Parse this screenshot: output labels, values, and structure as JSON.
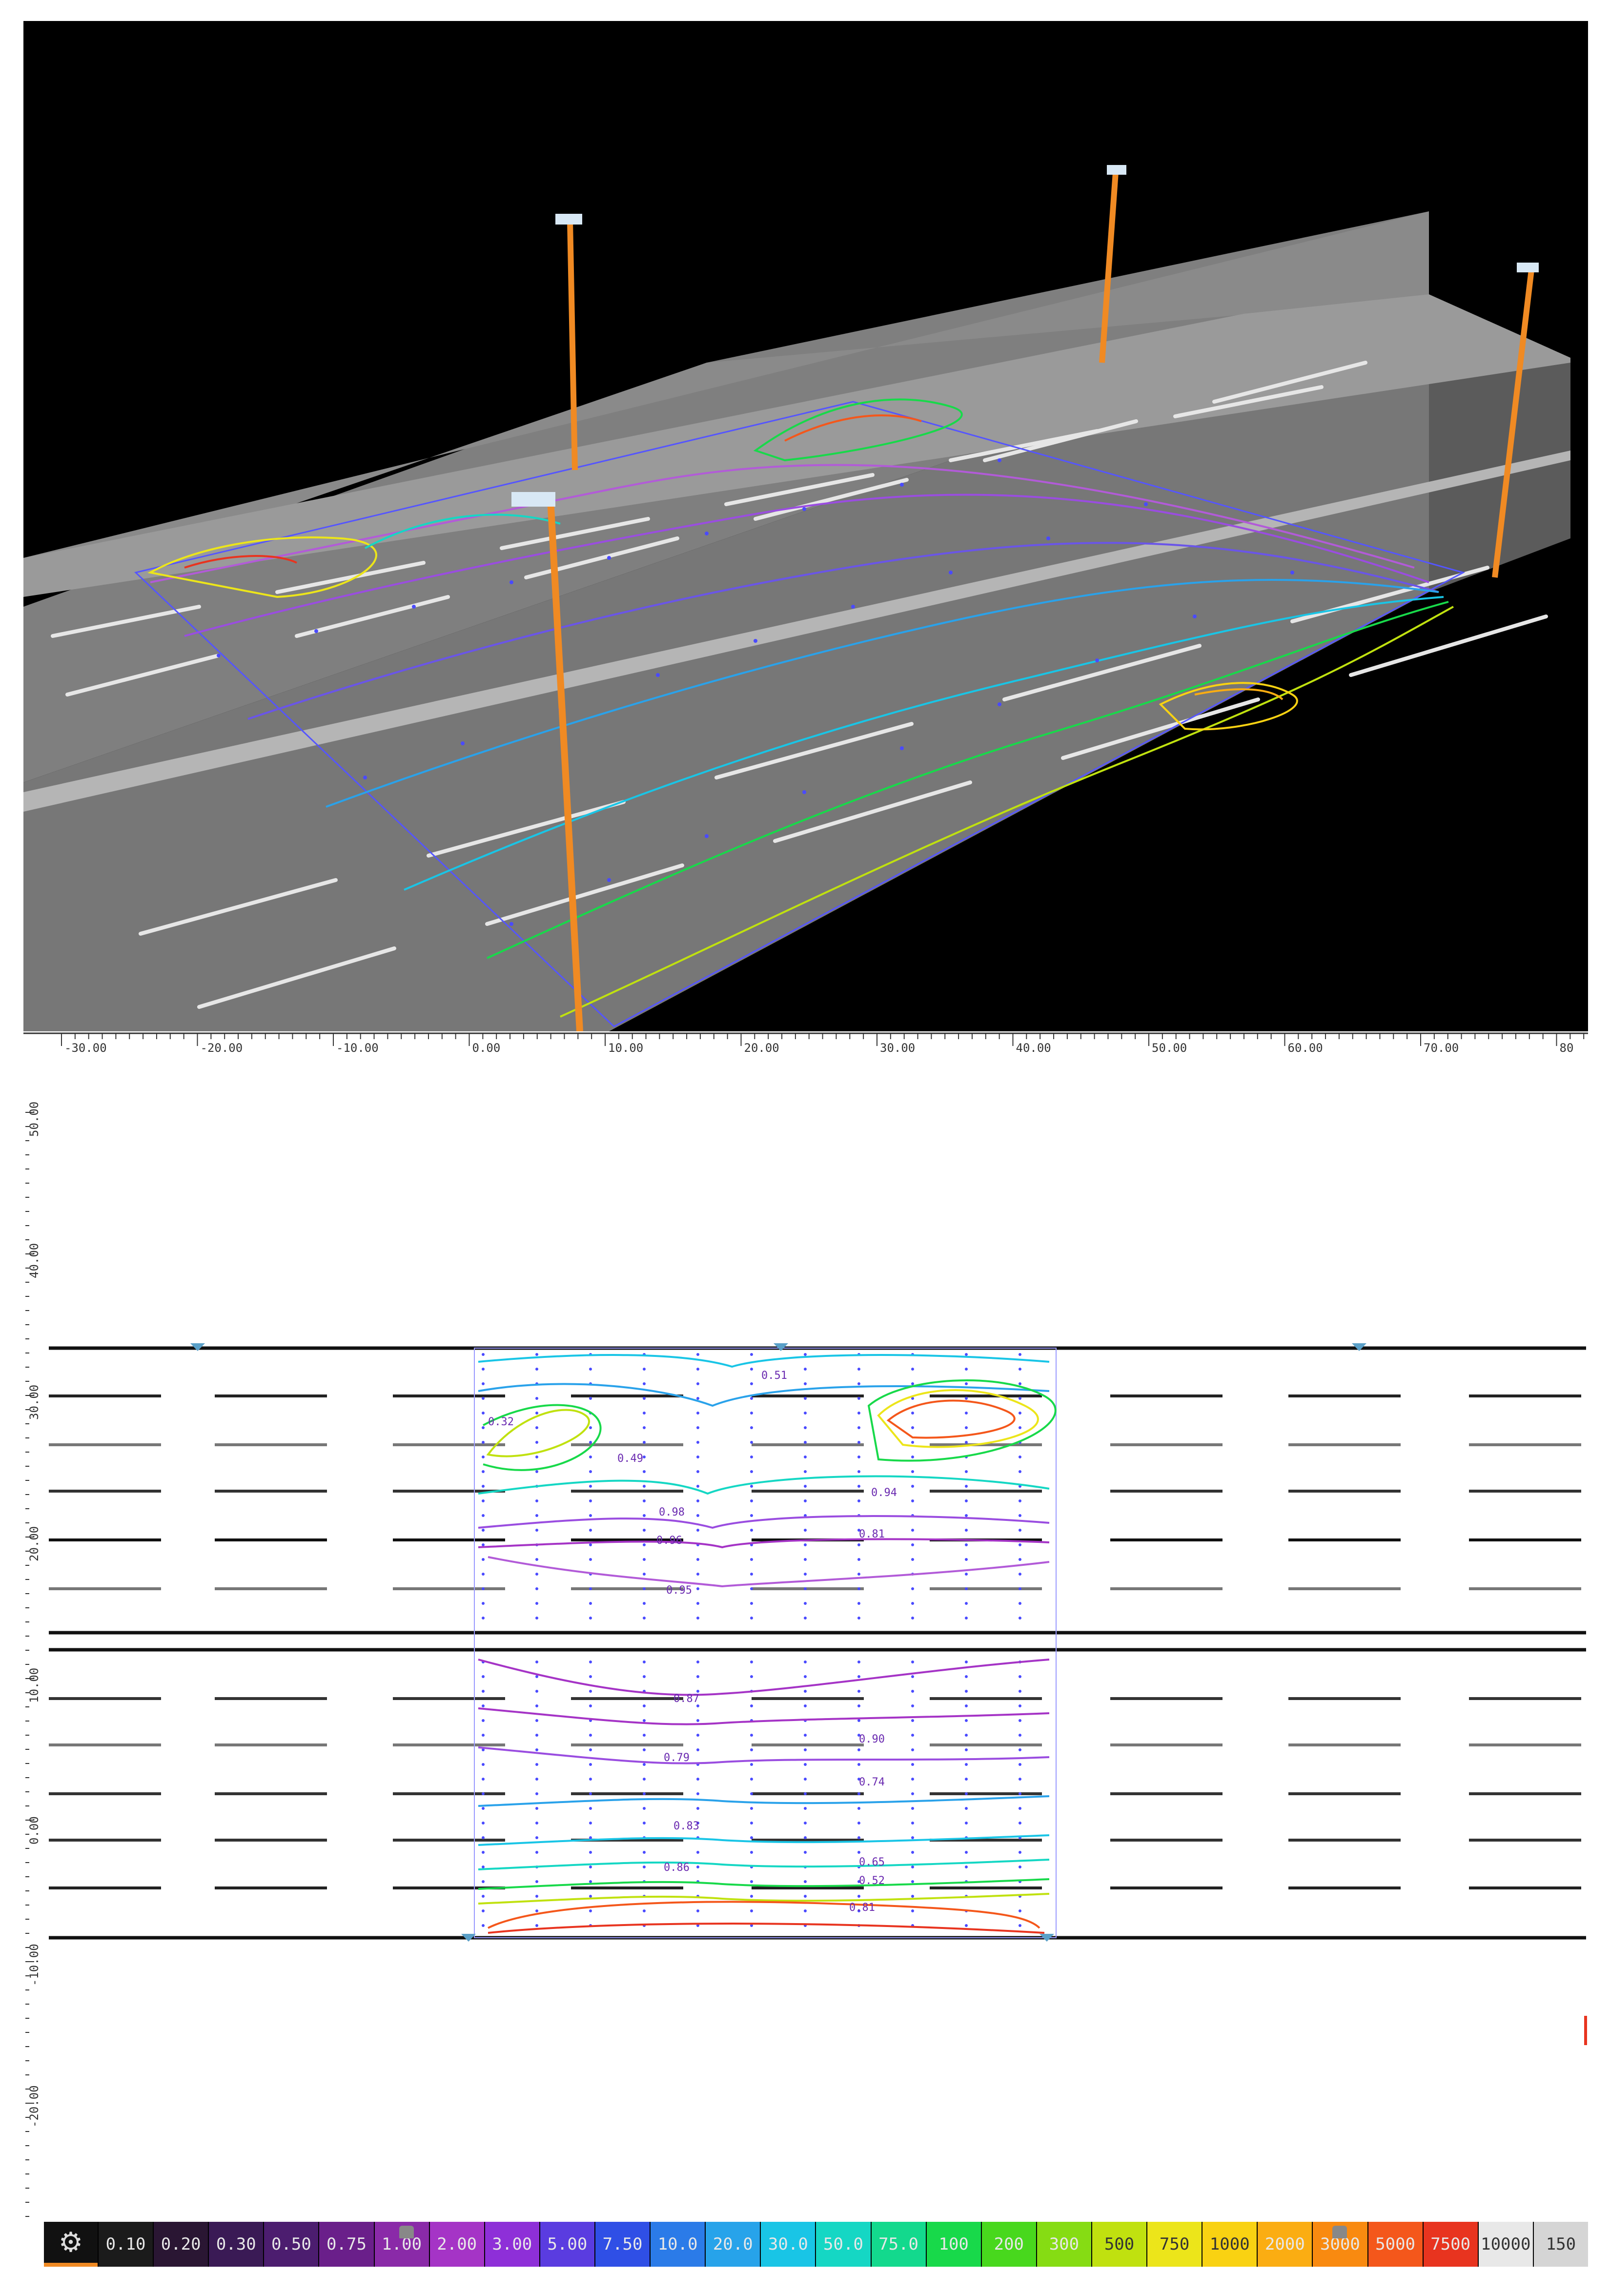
{
  "ruler_h": {
    "labels": [
      "-30.00",
      "-20.00",
      "-10.00",
      "0.00",
      "10.00",
      "20.00",
      "30.00",
      "40.00",
      "50.00",
      "60.00",
      "70.00",
      "80"
    ]
  },
  "ruler_v": {
    "labels": [
      "50.00",
      "40.00",
      "30.00",
      "20.00",
      "10.00",
      "0.00",
      "-10.00",
      "-20.00"
    ]
  },
  "plan_labels": [
    "0.32",
    "0.51",
    "0.49",
    "0.98",
    "0.94",
    "0.96",
    "0.95",
    "0.81",
    "0.87",
    "0.90",
    "0.79",
    "0.74",
    "0.83",
    "0.86",
    "0.65",
    "0.52",
    "0.81"
  ],
  "legend": {
    "gear_icon": "gear-icon",
    "items": [
      {
        "label": "0.10",
        "color": "#1b1b1b"
      },
      {
        "label": "0.20",
        "color": "#2a1633"
      },
      {
        "label": "0.30",
        "color": "#3a1a55"
      },
      {
        "label": "0.50",
        "color": "#4c1d6f"
      },
      {
        "label": "0.75",
        "color": "#6a1f8a"
      },
      {
        "label": "1.00",
        "color": "#8a2aa8"
      },
      {
        "label": "2.00",
        "color": "#a534c6"
      },
      {
        "label": "3.00",
        "color": "#8e2fd8"
      },
      {
        "label": "5.00",
        "color": "#5a3ce0"
      },
      {
        "label": "7.50",
        "color": "#2f4fe6"
      },
      {
        "label": "10.0",
        "color": "#2b7be8"
      },
      {
        "label": "20.0",
        "color": "#27a3ea"
      },
      {
        "label": "30.0",
        "color": "#19c5e6"
      },
      {
        "label": "50.0",
        "color": "#15d7c4"
      },
      {
        "label": "75.0",
        "color": "#13d98d"
      },
      {
        "label": "100",
        "color": "#18d94a"
      },
      {
        "label": "200",
        "color": "#48d81d"
      },
      {
        "label": "300",
        "color": "#86dc13"
      },
      {
        "label": "500",
        "color": "#c0e10f"
      },
      {
        "label": "750",
        "color": "#ece51a"
      },
      {
        "label": "1000",
        "color": "#f9d212"
      },
      {
        "label": "2000",
        "color": "#fbad12"
      },
      {
        "label": "3000",
        "color": "#f98a10"
      },
      {
        "label": "5000",
        "color": "#f4571b"
      },
      {
        "label": "7500",
        "color": "#e8341f"
      },
      {
        "label": "10000",
        "color": "#e8e8e8"
      },
      {
        "label": "150",
        "color": "#d5d5d5"
      }
    ]
  }
}
